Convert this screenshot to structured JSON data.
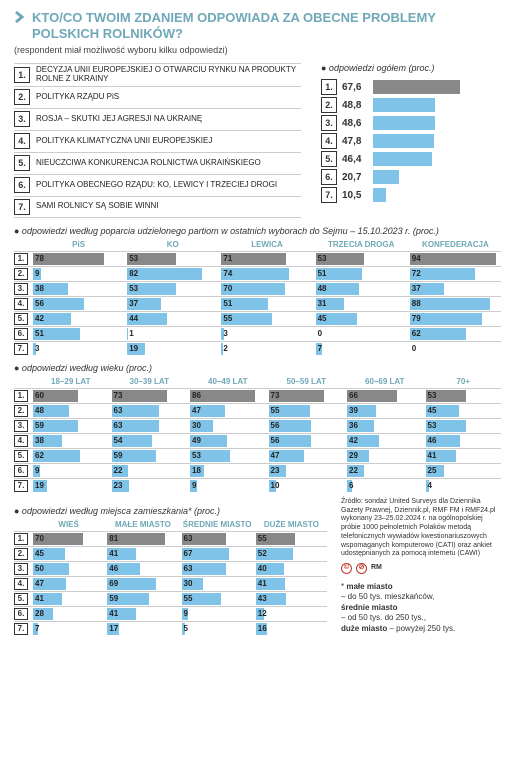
{
  "colors": {
    "accent": "#6fa8b8",
    "bar_primary": "#7fc4e8",
    "bar_first": "#888888",
    "border": "#cccccc"
  },
  "title": "KTO/CO TWOIM ZDANIEM ODPOWIADA ZA OBECNE PROBLEMY POLSKICH ROLNIKÓW?",
  "subtitle": "(respondent miał możliwość wyboru kilku odpowiedzi)",
  "options": [
    {
      "n": "1.",
      "label": "DECYZJA UNII EUROPEJSKIEJ O OTWARCIU RYNKU NA PRODUKTY ROLNE Z UKRAINY"
    },
    {
      "n": "2.",
      "label": "POLITYKA RZĄDU PiS"
    },
    {
      "n": "3.",
      "label": "ROSJA – SKUTKI JEJ AGRESJI NA UKRAINĘ"
    },
    {
      "n": "4.",
      "label": "POLITYKA KLIMATYCZNA UNII EUROPEJSKIEJ"
    },
    {
      "n": "5.",
      "label": "NIEUCZCIWA KONKURENCJA ROLNICTWA UKRAIŃSKIEGO"
    },
    {
      "n": "6.",
      "label": "POLITYKA OBECNEGO RZĄDU: KO, LEWICY I TRZECIEJ DROGI"
    },
    {
      "n": "7.",
      "label": "SAMI ROLNICY SĄ SOBIE WINNI"
    }
  ],
  "overall": {
    "heading": "● odpowiedzi ogółem (proc.)",
    "max": 100,
    "rows": [
      {
        "n": "1.",
        "v": 67.6
      },
      {
        "n": "2.",
        "v": 48.8
      },
      {
        "n": "3.",
        "v": 48.6
      },
      {
        "n": "4.",
        "v": 47.8
      },
      {
        "n": "5.",
        "v": 46.4
      },
      {
        "n": "6.",
        "v": 20.7
      },
      {
        "n": "7.",
        "v": 10.5
      }
    ]
  },
  "by_party": {
    "heading": "● odpowiedzi według poparcia udzielonego partiom w ostatnich wyborach do Sejmu – 15.10.2023 r. (proc.)",
    "cols": [
      "PiS",
      "KO",
      "LEWICA",
      "TRZECIA DROGA",
      "KONFEDERACJA"
    ],
    "max": 100,
    "rows": [
      {
        "n": "1.",
        "v": [
          78,
          53,
          71,
          53,
          94
        ]
      },
      {
        "n": "2.",
        "v": [
          9,
          82,
          74,
          51,
          72
        ]
      },
      {
        "n": "3.",
        "v": [
          38,
          53,
          70,
          48,
          37
        ]
      },
      {
        "n": "4.",
        "v": [
          56,
          37,
          51,
          31,
          88
        ]
      },
      {
        "n": "5.",
        "v": [
          42,
          44,
          55,
          45,
          79
        ]
      },
      {
        "n": "6.",
        "v": [
          51,
          1,
          3,
          0,
          62
        ]
      },
      {
        "n": "7.",
        "v": [
          3,
          19,
          2,
          7,
          0
        ]
      }
    ]
  },
  "by_age": {
    "heading": "● odpowiedzi według wieku (proc.)",
    "cols": [
      "18–29 LAT",
      "30–39 LAT",
      "40–49 LAT",
      "50–59 LAT",
      "60–69 LAT",
      "70+"
    ],
    "max": 100,
    "rows": [
      {
        "n": "1.",
        "v": [
          60,
          73,
          86,
          73,
          66,
          53
        ]
      },
      {
        "n": "2.",
        "v": [
          48,
          63,
          47,
          55,
          39,
          45
        ]
      },
      {
        "n": "3.",
        "v": [
          59,
          63,
          30,
          56,
          36,
          53
        ]
      },
      {
        "n": "4.",
        "v": [
          38,
          54,
          49,
          56,
          42,
          46
        ]
      },
      {
        "n": "5.",
        "v": [
          62,
          59,
          53,
          47,
          29,
          41
        ]
      },
      {
        "n": "6.",
        "v": [
          9,
          22,
          18,
          23,
          22,
          25
        ]
      },
      {
        "n": "7.",
        "v": [
          19,
          23,
          9,
          10,
          6,
          4
        ]
      }
    ]
  },
  "by_place": {
    "heading": "● odpowiedzi według miejsca zamieszkania* (proc.)",
    "cols": [
      "WIEŚ",
      "MAŁE MIASTO",
      "ŚREDNIE MIASTO",
      "DUŻE MIASTO"
    ],
    "max": 100,
    "rows": [
      {
        "n": "1.",
        "v": [
          70,
          81,
          63,
          55
        ]
      },
      {
        "n": "2.",
        "v": [
          45,
          41,
          67,
          52
        ]
      },
      {
        "n": "3.",
        "v": [
          50,
          46,
          63,
          40
        ]
      },
      {
        "n": "4.",
        "v": [
          47,
          69,
          30,
          41
        ]
      },
      {
        "n": "5.",
        "v": [
          41,
          59,
          55,
          43
        ]
      },
      {
        "n": "6.",
        "v": [
          28,
          41,
          9,
          12
        ]
      },
      {
        "n": "7.",
        "v": [
          7,
          17,
          5,
          16
        ]
      }
    ]
  },
  "source": "Źródło: sondaż United Surveys dla Dziennika Gazety Prawnej, Dziennik.pl, RMF FM i RMF24.pl wykonany 23–25.02.2024 r. na ogólnopolskiej próbie 1000 pełnoletnich Polaków metodą telefonicznych wywiadów kwestionariuszowych wspomaganych komputerowo (CATI) oraz ankiet udostępnianych za pomocą internetu (CAWI)",
  "author": "RM",
  "notes": {
    "star": "*",
    "l1": "małe miasto",
    "l1d": "– do 50 tys. mieszkańców,",
    "l2": "średnie miasto",
    "l2d": "– od 50 tys. do 250 tys.,",
    "l3": "duże miasto",
    "l3d": "– powyżej 250 tys."
  }
}
